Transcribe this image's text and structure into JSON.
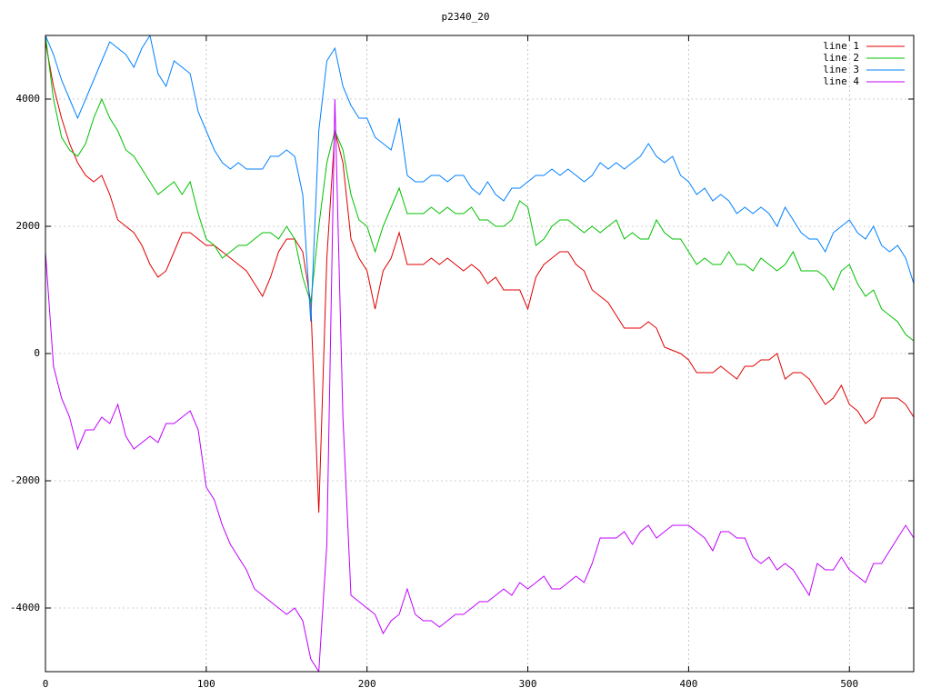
{
  "chart_data": {
    "type": "line",
    "title": "p2340_20",
    "x": [
      0,
      5,
      10,
      15,
      20,
      25,
      30,
      35,
      40,
      45,
      50,
      55,
      60,
      65,
      70,
      75,
      80,
      85,
      90,
      95,
      100,
      105,
      110,
      115,
      120,
      125,
      130,
      135,
      140,
      145,
      150,
      155,
      160,
      165,
      170,
      175,
      180,
      185,
      190,
      195,
      200,
      205,
      210,
      215,
      220,
      225,
      230,
      235,
      240,
      245,
      250,
      255,
      260,
      265,
      270,
      275,
      280,
      285,
      290,
      295,
      300,
      305,
      310,
      315,
      320,
      325,
      330,
      335,
      340,
      345,
      350,
      355,
      360,
      365,
      370,
      375,
      380,
      385,
      390,
      395,
      400,
      405,
      410,
      415,
      420,
      425,
      430,
      435,
      440,
      445,
      450,
      455,
      460,
      465,
      470,
      475,
      480,
      485,
      490,
      495,
      500,
      505,
      510,
      515,
      520,
      525,
      530,
      535,
      540
    ],
    "series": [
      {
        "name": "line 1",
        "color": "#e00000",
        "values": [
          4900,
          4200,
          3700,
          3300,
          3000,
          2800,
          2700,
          2800,
          2500,
          2100,
          2000,
          1900,
          1700,
          1400,
          1200,
          1300,
          1600,
          1900,
          1900,
          1800,
          1700,
          1700,
          1600,
          1500,
          1400,
          1300,
          1100,
          900,
          1200,
          1600,
          1800,
          1800,
          1600,
          800,
          -2500,
          1500,
          3500,
          3000,
          1800,
          1500,
          1300,
          700,
          1300,
          1500,
          1900,
          1400,
          1400,
          1400,
          1500,
          1400,
          1500,
          1400,
          1300,
          1400,
          1300,
          1100,
          1200,
          1000,
          1000,
          1000,
          700,
          1200,
          1400,
          1500,
          1600,
          1600,
          1400,
          1300,
          1000,
          900,
          800,
          600,
          400,
          400,
          400,
          500,
          400,
          100,
          50,
          0,
          -100,
          -300,
          -300,
          -300,
          -200,
          -300,
          -400,
          -200,
          -200,
          -100,
          -100,
          0,
          -400,
          -300,
          -300,
          -400,
          -600,
          -800,
          -700,
          -500,
          -800,
          -900,
          -1100,
          -1000,
          -700,
          -700,
          -700,
          -800,
          -1000
        ]
      },
      {
        "name": "line 2",
        "color": "#00c000",
        "values": [
          5000,
          4000,
          3400,
          3200,
          3100,
          3300,
          3700,
          4000,
          3700,
          3500,
          3200,
          3100,
          2900,
          2700,
          2500,
          2600,
          2700,
          2500,
          2700,
          2200,
          1800,
          1700,
          1500,
          1600,
          1700,
          1700,
          1800,
          1900,
          1900,
          1800,
          2000,
          1800,
          1200,
          800,
          2000,
          3000,
          3500,
          3200,
          2500,
          2100,
          2000,
          1600,
          2000,
          2300,
          2600,
          2200,
          2200,
          2200,
          2300,
          2200,
          2300,
          2200,
          2200,
          2300,
          2100,
          2100,
          2000,
          2000,
          2100,
          2400,
          2300,
          1700,
          1800,
          2000,
          2100,
          2100,
          2000,
          1900,
          2000,
          1900,
          2000,
          2100,
          1800,
          1900,
          1800,
          1800,
          2100,
          1900,
          1800,
          1800,
          1600,
          1400,
          1500,
          1400,
          1400,
          1600,
          1400,
          1400,
          1300,
          1500,
          1400,
          1300,
          1400,
          1600,
          1300,
          1300,
          1300,
          1200,
          1000,
          1300,
          1400,
          1100,
          900,
          1000,
          700,
          600,
          500,
          300,
          200
        ]
      },
      {
        "name": "line 3",
        "color": "#0080ff",
        "values": [
          5000,
          4700,
          4300,
          4000,
          3700,
          4000,
          4300,
          4600,
          4900,
          4800,
          4700,
          4500,
          4800,
          5000,
          4400,
          4200,
          4600,
          4500,
          4400,
          3800,
          3500,
          3200,
          3000,
          2900,
          3000,
          2900,
          2900,
          2900,
          3100,
          3100,
          3200,
          3100,
          2500,
          500,
          3500,
          4600,
          4800,
          4200,
          3900,
          3700,
          3700,
          3400,
          3300,
          3200,
          3700,
          2800,
          2700,
          2700,
          2800,
          2800,
          2700,
          2800,
          2800,
          2600,
          2500,
          2700,
          2500,
          2400,
          2600,
          2600,
          2700,
          2800,
          2800,
          2900,
          2800,
          2900,
          2800,
          2700,
          2800,
          3000,
          2900,
          3000,
          2900,
          3000,
          3100,
          3300,
          3100,
          3000,
          3100,
          2800,
          2700,
          2500,
          2600,
          2400,
          2500,
          2400,
          2200,
          2300,
          2200,
          2300,
          2200,
          2000,
          2300,
          2100,
          1900,
          1800,
          1800,
          1600,
          1900,
          2000,
          2100,
          1900,
          1800,
          2000,
          1700,
          1600,
          1700,
          1500,
          1100
        ]
      },
      {
        "name": "line 4",
        "color": "#c000ff",
        "values": [
          1600,
          -200,
          -700,
          -1000,
          -1500,
          -1200,
          -1200,
          -1000,
          -1100,
          -800,
          -1300,
          -1500,
          -1400,
          -1300,
          -1400,
          -1100,
          -1100,
          -1000,
          -900,
          -1200,
          -2100,
          -2300,
          -2700,
          -3000,
          -3200,
          -3400,
          -3700,
          -3800,
          -3900,
          -4000,
          -4100,
          -4000,
          -4200,
          -4800,
          -5000,
          -3000,
          4000,
          -1000,
          -3800,
          -3900,
          -4000,
          -4100,
          -4400,
          -4200,
          -4100,
          -3700,
          -4100,
          -4200,
          -4200,
          -4300,
          -4200,
          -4100,
          -4100,
          -4000,
          -3900,
          -3900,
          -3800,
          -3700,
          -3800,
          -3600,
          -3700,
          -3600,
          -3500,
          -3700,
          -3700,
          -3600,
          -3500,
          -3600,
          -3300,
          -2900,
          -2900,
          -2900,
          -2800,
          -3000,
          -2800,
          -2700,
          -2900,
          -2800,
          -2700,
          -2700,
          -2700,
          -2800,
          -2900,
          -3100,
          -2800,
          -2800,
          -2900,
          -2900,
          -3200,
          -3300,
          -3200,
          -3400,
          -3300,
          -3400,
          -3600,
          -3800,
          -3300,
          -3400,
          -3400,
          -3200,
          -3400,
          -3500,
          -3600,
          -3300,
          -3300,
          -3100,
          -2900,
          -2700,
          -2900
        ]
      }
    ],
    "xlim": [
      0,
      540
    ],
    "ylim": [
      -5000,
      5000
    ],
    "xticks": [
      0,
      100,
      200,
      300,
      400,
      500
    ],
    "yticks": [
      -4000,
      -2000,
      0,
      2000,
      4000
    ],
    "grid": true,
    "legend": "top-right"
  }
}
